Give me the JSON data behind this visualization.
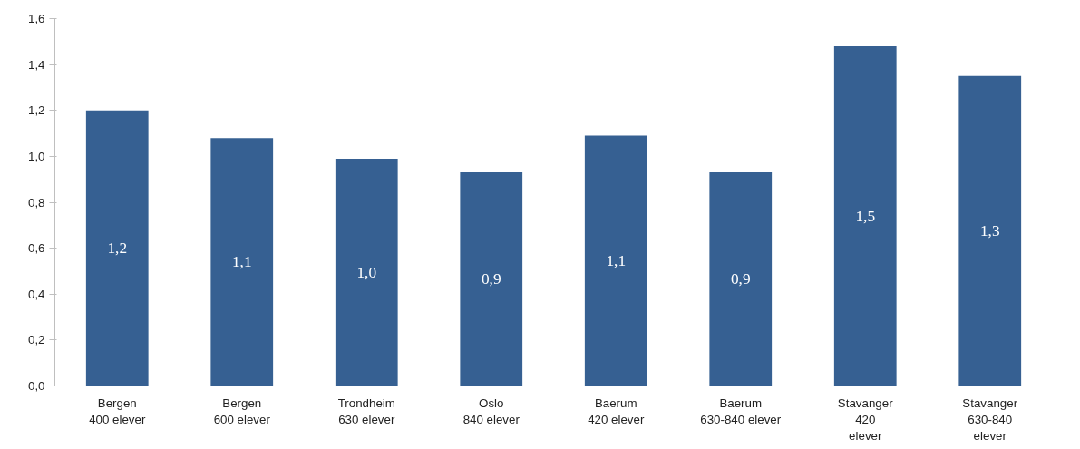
{
  "chart_data": {
    "type": "bar",
    "categories": [
      "Bergen\n400 elever",
      "Bergen\n600 elever",
      "Trondheim\n630 elever",
      "Oslo\n840 elever",
      "Baerum\n420 elever",
      "Baerum\n630-840 elever",
      "Stavanger\n420\nelever",
      "Stavanger\n630-840\nelever"
    ],
    "values": [
      1.2,
      1.08,
      0.99,
      0.93,
      1.09,
      0.93,
      1.48,
      1.35
    ],
    "value_labels": [
      "1,2",
      "1,1",
      "1,0",
      "0,9",
      "1,1",
      "0,9",
      "1,5",
      "1,3"
    ],
    "color": "#366092",
    "ylim": [
      0,
      1.6
    ],
    "yticks": [
      {
        "value": 0,
        "label": "0,0"
      },
      {
        "value": 0.2,
        "label": "0,2"
      },
      {
        "value": 0.4,
        "label": "0,4"
      },
      {
        "value": 0.6,
        "label": "0,6"
      },
      {
        "value": 0.8,
        "label": "0,8"
      },
      {
        "value": 1.0,
        "label": "1,0"
      },
      {
        "value": 1.2,
        "label": "1,2"
      },
      {
        "value": 1.4,
        "label": "1,4"
      },
      {
        "value": 1.6,
        "label": "1,6"
      }
    ],
    "grid": false
  }
}
